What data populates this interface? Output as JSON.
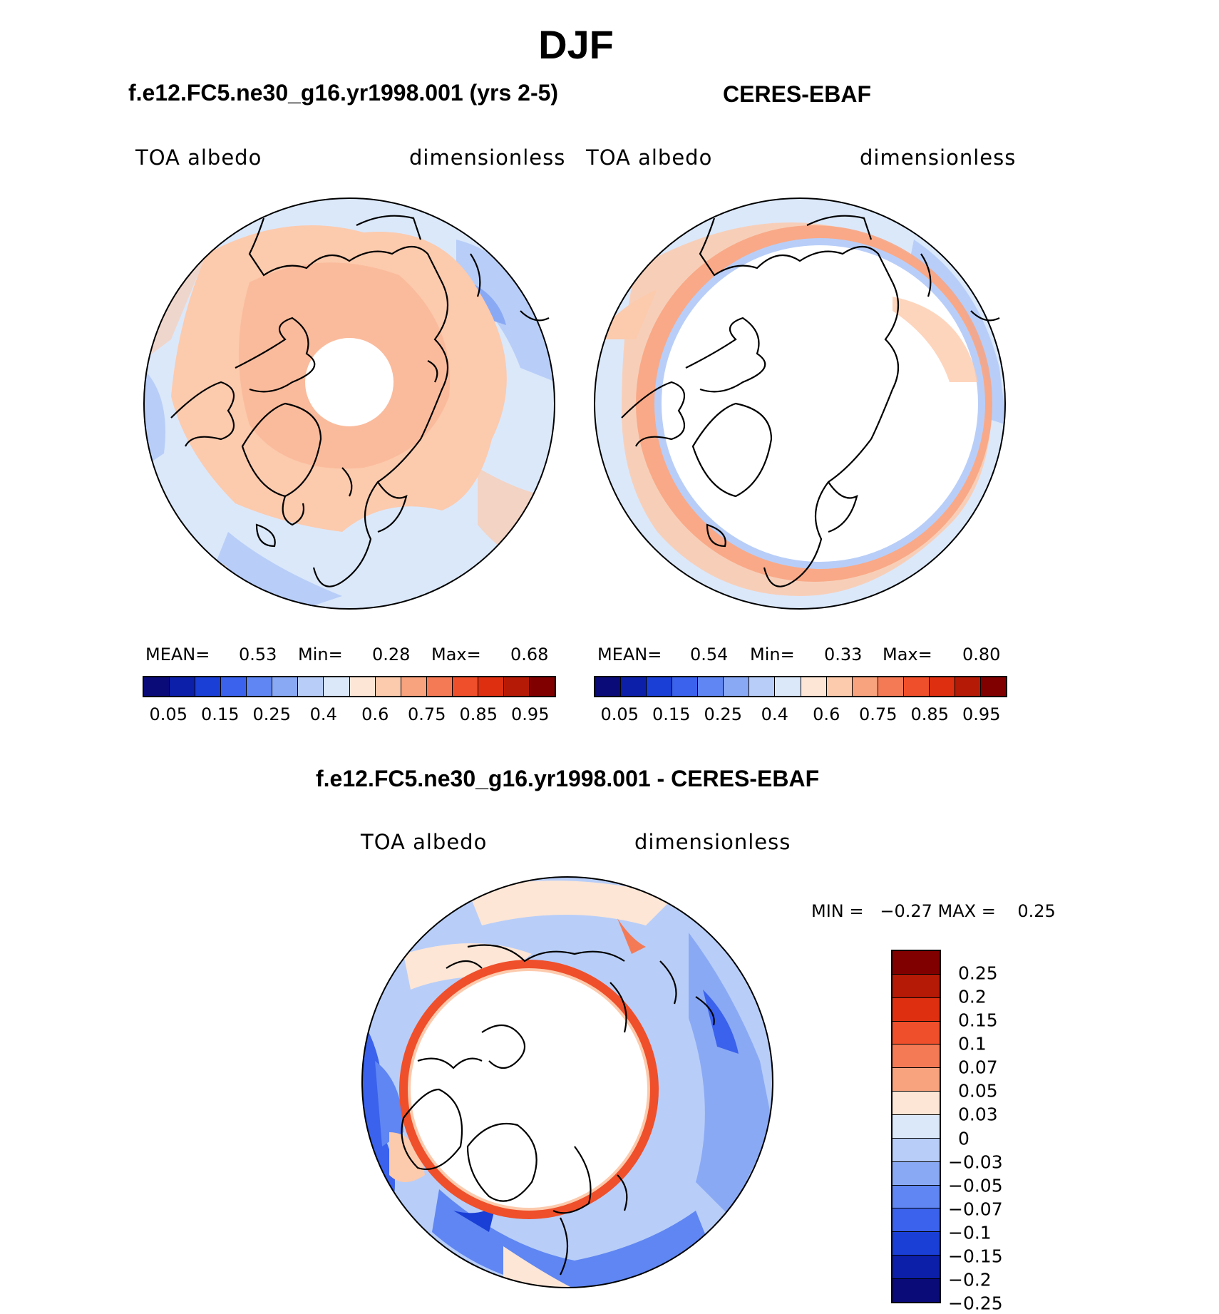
{
  "figure_title": "DJF",
  "panels": {
    "model": {
      "title": "f.e12.FC5.ne30_g16.yr1998.001 (yrs 2-5)",
      "variable": "TOA albedo",
      "units": "dimensionless",
      "mean_label": "MEAN=",
      "mean_value": "0.53",
      "min_label": "Min=",
      "min_value": "0.28",
      "max_label": "Max=",
      "max_value": "0.68"
    },
    "obs": {
      "title": "CERES-EBAF",
      "variable": "TOA albedo",
      "units": "dimensionless",
      "mean_label": "MEAN=",
      "mean_value": "0.54",
      "min_label": "Min=",
      "min_value": "0.33",
      "max_label": "Max=",
      "max_value": "0.80"
    },
    "diff": {
      "title": "f.e12.FC5.ne30_g16.yr1998.001 - CERES-EBAF",
      "variable": "TOA albedo",
      "units": "dimensionless",
      "minmax_text": "MIN =   −0.27 MAX =    0.25"
    }
  },
  "colorbar_top": {
    "colors": [
      "#0a0a78",
      "#0c1fa8",
      "#1a3fd6",
      "#3a62ec",
      "#5f86f2",
      "#8aa9f5",
      "#b8cef8",
      "#dbe8fa",
      "#fde6d6",
      "#fccaad",
      "#f9a27e",
      "#f47a55",
      "#ef4f2a",
      "#de3010",
      "#b41a06",
      "#800000"
    ],
    "tick_labels": [
      "0.05",
      "0.15",
      "0.25",
      "0.4",
      "0.6",
      "0.75",
      "0.85",
      "0.95"
    ]
  },
  "colorbar_diff": {
    "colors": [
      "#800000",
      "#b41a06",
      "#de3010",
      "#ef4f2a",
      "#f47a55",
      "#f9a27e",
      "#fde6d6",
      "#dbe8fa",
      "#b8cef8",
      "#8aa9f5",
      "#5f86f2",
      "#3a62ec",
      "#1a3fd6",
      "#0c1fa8",
      "#0a0a78"
    ],
    "tick_labels": [
      "0.25",
      "0.2",
      "0.15",
      "0.1",
      "0.07",
      "0.05",
      "0.03",
      "0",
      "−0.03",
      "−0.05",
      "−0.07",
      "−0.1",
      "−0.15",
      "−0.2",
      "−0.25"
    ]
  }
}
